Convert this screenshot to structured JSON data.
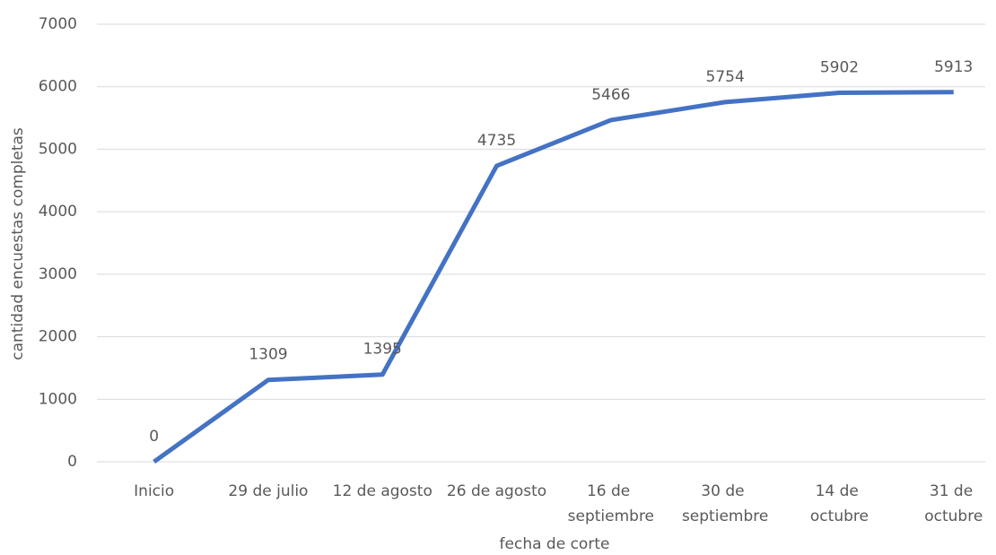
{
  "chart_data": {
    "type": "line",
    "xlabel": "fecha de corte",
    "ylabel": "cantidad encuestas completas",
    "categories": [
      "Inicio",
      "29 de julio",
      "12 de agosto",
      "26 de agosto",
      "16 de septiembre",
      "30 de septiembre",
      "14 de octubre",
      "31 de octubre"
    ],
    "series": [
      {
        "name": "cantidad encuestas completas",
        "color": "#4472c4",
        "values": [
          0,
          1309,
          1395,
          4735,
          5466,
          5754,
          5902,
          5913
        ]
      }
    ],
    "ylim": [
      0,
      7000
    ],
    "yticks": [
      0,
      1000,
      2000,
      3000,
      4000,
      5000,
      6000,
      7000
    ],
    "grid": true
  }
}
